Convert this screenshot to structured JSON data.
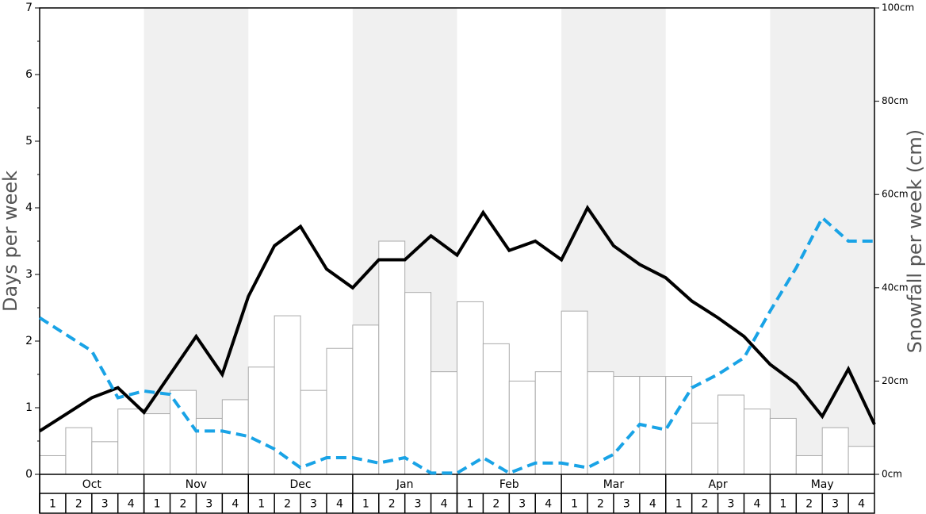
{
  "chart_data": {
    "type": "bar-line",
    "y_label": "Days per week",
    "y2_label": "Snowfall per week (cm)",
    "months": [
      "Oct",
      "Nov",
      "Dec",
      "Jan",
      "Feb",
      "Mar",
      "Apr",
      "May"
    ],
    "weeks": [
      "1",
      "2",
      "3",
      "4"
    ],
    "shaded_months": [
      1,
      3,
      5,
      7
    ],
    "shade_color": "#f0f0f0",
    "ylim": [
      0,
      7
    ],
    "yticks": [
      0,
      1,
      2,
      3,
      4,
      5,
      6,
      7
    ],
    "y2lim": [
      0,
      100
    ],
    "y2ticks": [
      {
        "value": 0,
        "label": "0cm"
      },
      {
        "value": 20,
        "label": "20cm"
      },
      {
        "value": 40,
        "label": "40cm"
      },
      {
        "value": 60,
        "label": "60cm"
      },
      {
        "value": 80,
        "label": "80cm"
      },
      {
        "value": 100,
        "label": "100cm"
      }
    ],
    "bars": {
      "axis": "y2",
      "color": "#ffffff",
      "edge": "#aaaaaa",
      "values": [
        4,
        10,
        7,
        14,
        13,
        18,
        12,
        16,
        23,
        34,
        18,
        27,
        32,
        50,
        39,
        22,
        37,
        28,
        20,
        22,
        35,
        22,
        21,
        21,
        21,
        11,
        17,
        14,
        12,
        4,
        10,
        6
      ]
    },
    "series": [
      {
        "color": "#000000",
        "dash": false,
        "values": [
          0.65,
          0.9,
          1.15,
          1.3,
          0.93,
          1.5,
          2.07,
          1.5,
          2.67,
          3.43,
          3.72,
          3.08,
          2.8,
          3.22,
          3.22,
          3.58,
          3.29,
          3.93,
          3.36,
          3.5,
          3.22,
          4.0,
          3.43,
          3.15,
          2.95,
          2.6,
          2.35,
          2.07,
          1.65,
          1.36,
          0.87,
          1.58,
          0.75
        ]
      },
      {
        "color": "#19a3e6",
        "dash": true,
        "values": [
          2.35,
          2.1,
          1.85,
          1.15,
          1.25,
          1.2,
          0.65,
          0.65,
          0.57,
          0.38,
          0.1,
          0.25,
          0.25,
          0.17,
          0.25,
          0.02,
          0.02,
          0.25,
          0.02,
          0.17,
          0.17,
          0.1,
          0.3,
          0.75,
          0.67,
          1.3,
          1.5,
          1.75,
          2.45,
          3.1,
          3.85,
          3.5,
          3.5
        ]
      }
    ]
  }
}
